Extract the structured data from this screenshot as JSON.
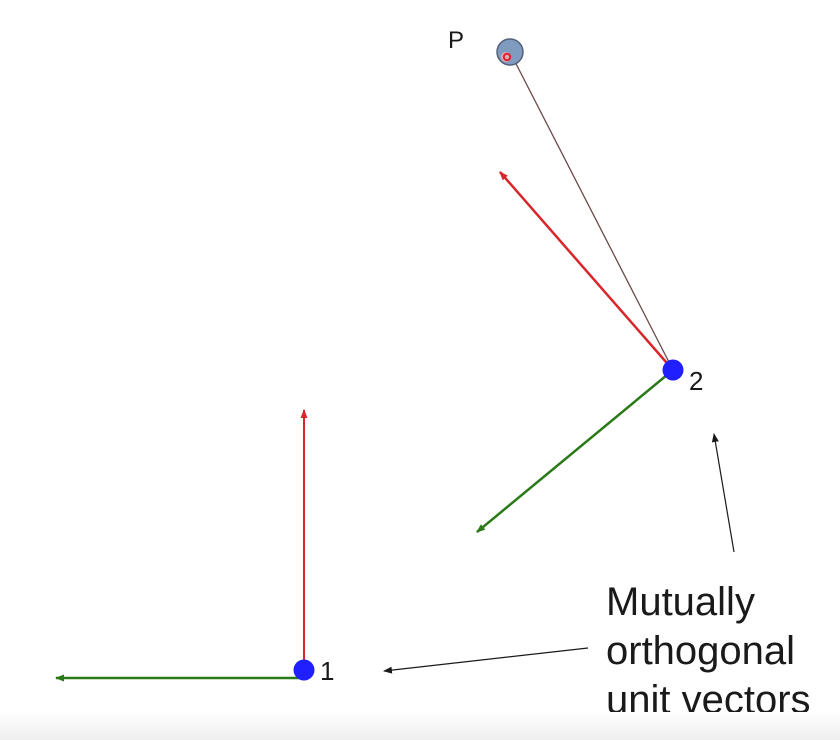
{
  "labels": {
    "point_p": "P",
    "point_1": "1",
    "point_2": "2"
  },
  "caption": {
    "lines": [
      "Mutually",
      "orthogonal",
      "unit vectors"
    ]
  },
  "colors": {
    "point": "#1f1fff",
    "target_point": "#7f9cc0",
    "target_dot": "#e0202c",
    "red_vector": "#d8262b",
    "green_vector": "#2a7a18",
    "connector": "#6b4a48",
    "pointer": "#1a1a1a"
  }
}
